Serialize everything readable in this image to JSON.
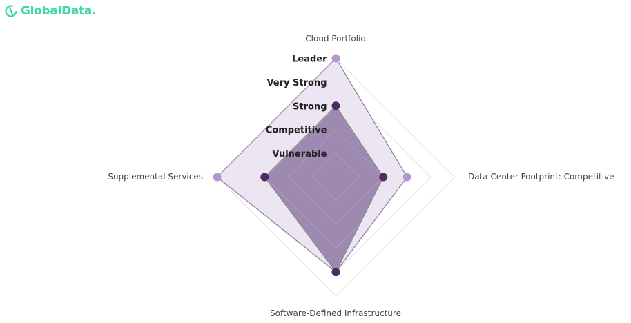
{
  "logo": {
    "text": "GlobalData.",
    "color": "#3fd9a6"
  },
  "chart_data": {
    "type": "radar",
    "axes": [
      "Cloud Portfolio",
      "Data Center Footprint: Competitive",
      "Software-Defined Infrastructure",
      "Supplemental Services"
    ],
    "levels": [
      "Vulnerable",
      "Competitive",
      "Strong",
      "Very Strong",
      "Leader"
    ],
    "range": [
      0,
      5
    ],
    "grid": true,
    "series": [
      {
        "values": [
          5,
          3,
          4,
          5
        ],
        "fill": "#e9e3f0",
        "stroke": "#8a7a9c",
        "marker": "#b597cc"
      },
      {
        "values": [
          3,
          2,
          4,
          3
        ],
        "fill": "#9a84ad",
        "stroke": "#8a8a8a",
        "marker": "#4f2a63"
      }
    ]
  }
}
